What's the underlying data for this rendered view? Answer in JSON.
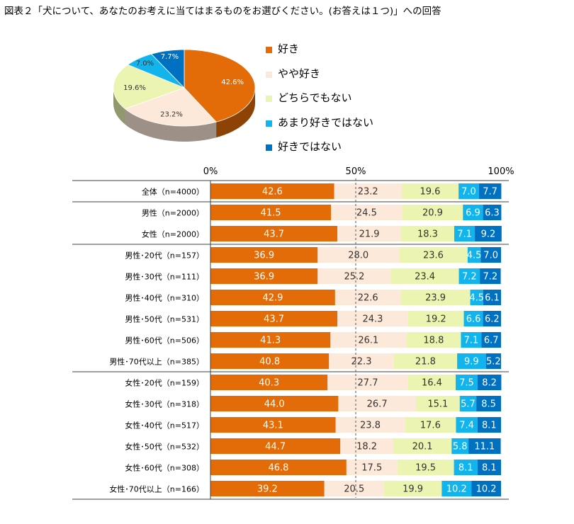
{
  "title": "図表２「犬について、あなたのお考えに当てはまるものをお選びください。(お答えは１つ)」への回答",
  "colors": {
    "like": "#e36c09",
    "somewhat_like": "#fde9d9",
    "neutral": "#ebf5b1",
    "somewhat_dislike": "#12b4ee",
    "dislike": "#0070c0"
  },
  "legend": [
    {
      "label": "好き",
      "color": "#e36c09"
    },
    {
      "label": "やや好き",
      "color": "#fde9d9"
    },
    {
      "label": "どちらでもない",
      "color": "#ebf5b1"
    },
    {
      "label": "あまり好きではない",
      "color": "#12b4ee"
    },
    {
      "label": "好きではない",
      "color": "#0070c0"
    }
  ],
  "chart_data": [
    {
      "type": "pie",
      "categories": [
        "好き",
        "やや好き",
        "どちらでもない",
        "あまり好きではない",
        "好きではない"
      ],
      "values": [
        42.6,
        23.2,
        19.6,
        7.0,
        7.7
      ],
      "labels": [
        "42.6%",
        "23.2%",
        "19.6%",
        "7.0%",
        "7.7%"
      ]
    },
    {
      "type": "bar",
      "orientation": "horizontal",
      "stacked": true,
      "xlim": [
        0,
        100
      ],
      "x_ticks": [
        "0%",
        "50%",
        "100%"
      ],
      "categories": [
        "全体（n=4000）",
        "男性（n=2000）",
        "女性（n=2000）",
        "男性･20代（n=157）",
        "男性･30代（n=111）",
        "男性･40代（n=310）",
        "男性･50代（n=531）",
        "男性･60代（n=506）",
        "男性･70代以上（n=385）",
        "女性･20代（n=159）",
        "女性･30代（n=318）",
        "女性･40代（n=517）",
        "女性･50代（n=532）",
        "女性･60代（n=308）",
        "女性･70代以上（n=166）"
      ],
      "series": [
        {
          "name": "好き",
          "values": [
            42.6,
            41.5,
            43.7,
            36.9,
            36.9,
            42.9,
            43.7,
            41.3,
            40.8,
            40.3,
            44.0,
            43.1,
            44.7,
            46.8,
            39.2
          ]
        },
        {
          "name": "やや好き",
          "values": [
            23.2,
            24.5,
            21.9,
            28.0,
            25.2,
            22.6,
            24.3,
            26.1,
            22.3,
            27.7,
            26.7,
            23.8,
            18.2,
            17.5,
            20.5
          ]
        },
        {
          "name": "どちらでもない",
          "values": [
            19.6,
            20.9,
            18.3,
            23.6,
            23.4,
            23.9,
            19.2,
            18.8,
            21.8,
            16.4,
            15.1,
            17.6,
            20.1,
            19.5,
            19.9
          ]
        },
        {
          "name": "あまり好きではない",
          "values": [
            7.0,
            6.9,
            7.1,
            4.5,
            7.2,
            4.5,
            6.6,
            7.1,
            9.9,
            7.5,
            5.7,
            7.4,
            5.8,
            8.1,
            10.2
          ]
        },
        {
          "name": "好きではない",
          "values": [
            7.7,
            6.3,
            9.2,
            7.0,
            7.2,
            6.1,
            6.2,
            6.7,
            5.2,
            8.2,
            8.5,
            8.1,
            11.1,
            8.1,
            10.2
          ]
        }
      ]
    }
  ]
}
